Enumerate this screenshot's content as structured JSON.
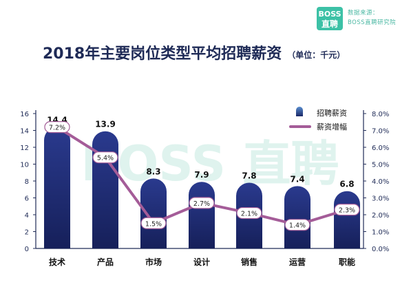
{
  "brand": {
    "logo_line1": "BOSS",
    "logo_line2": "直聘",
    "source_line1": "数据来源：",
    "source_line2": "BOSS直聘研究院",
    "watermark": "BOSS 直聘"
  },
  "header": {
    "title": "2018年主要岗位类型平均招聘薪资",
    "unit": "（单位：千元）"
  },
  "colors": {
    "bar_top": "#2a3a8e",
    "bar_bottom": "#16205a",
    "line": "#a45c98",
    "axis": "#1e2a56",
    "watermark": "#dff3ee"
  },
  "chart_data": {
    "type": "bar",
    "title": "2018年主要岗位类型平均招聘薪资",
    "categories": [
      "技术",
      "产品",
      "市场",
      "设计",
      "销售",
      "运营",
      "职能"
    ],
    "series": [
      {
        "name": "招聘薪资",
        "type": "bar",
        "axis": "left",
        "values": [
          14.4,
          13.9,
          8.3,
          7.9,
          7.8,
          7.4,
          6.8
        ],
        "labels": [
          "14.4",
          "13.9",
          "8.3",
          "7.9",
          "7.8",
          "7.4",
          "6.8"
        ]
      },
      {
        "name": "薪资增幅",
        "type": "line",
        "axis": "right",
        "values": [
          7.2,
          5.4,
          1.5,
          2.7,
          2.1,
          1.4,
          2.3
        ],
        "labels": [
          "7.2%",
          "5.4%",
          "1.5%",
          "2.7%",
          "2.1%",
          "1.4%",
          "2.3%"
        ]
      }
    ],
    "y_left": {
      "min": 0,
      "max": 16,
      "ticks": [
        "0",
        "2",
        "4",
        "6",
        "8",
        "10",
        "12",
        "14",
        "16"
      ]
    },
    "y_right": {
      "min": 0,
      "max": 8,
      "ticks": [
        "0.0%",
        "1.0%",
        "2.0%",
        "3.0%",
        "4.0%",
        "5.0%",
        "6.0%",
        "7.0%",
        "8.0%"
      ]
    },
    "legend": "top-right",
    "grid": false
  }
}
